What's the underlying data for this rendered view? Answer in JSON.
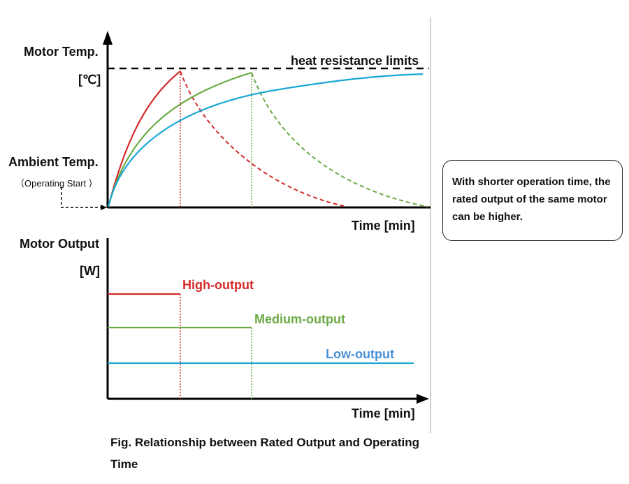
{
  "top_chart": {
    "y_title": "Motor Temp.",
    "y_unit": "[℃]",
    "limit_label": "heat resistance limits",
    "ambient_label": "Ambient Temp.",
    "ambient_sub": "（Operating Start ）",
    "x_label": "Time [min]"
  },
  "bottom_chart": {
    "y_title": "Motor Output",
    "y_unit": "[W]",
    "x_label": "Time [min]"
  },
  "note": "With shorter operation time, the rated output of the same motor can be higher.",
  "caption": "Fig. Relationship between Rated Output  and Operating Time",
  "chart_data": [
    {
      "type": "line",
      "ylabel": "Motor Temp. [℃]",
      "xlabel": "Time [min]",
      "annotations": [
        "heat resistance limits",
        "Ambient Temp.",
        "（Operating Start ）"
      ],
      "series": [
        {
          "color": "#d42a2a",
          "segments": [
            {
              "style": "solid",
              "x": [
                0,
                1
              ],
              "y": [
                0,
                1
              ]
            },
            {
              "style": "dashed",
              "x": [
                1,
                3.25
              ],
              "y": [
                1,
                0.02
              ]
            }
          ]
        },
        {
          "color": "#6aaa45",
          "segments": [
            {
              "style": "solid",
              "x": [
                0,
                2
              ],
              "y": [
                0,
                0.98
              ]
            },
            {
              "style": "dashed",
              "x": [
                2,
                4.5
              ],
              "y": [
                0.98,
                0.0
              ]
            }
          ]
        },
        {
          "color": "#1aa7d6",
          "segments": [
            {
              "style": "solid",
              "x": [
                0,
                4.4
              ],
              "y": [
                0,
                0.98
              ]
            }
          ]
        }
      ],
      "limit": 1.0,
      "grid": false
    },
    {
      "type": "line",
      "ylabel": "Motor Output [W]",
      "xlabel": "Time [min]",
      "series": [
        {
          "name": "High-output",
          "color": "#d42a2a",
          "x": [
            0,
            1
          ],
          "level": 3
        },
        {
          "name": "Medium-output",
          "color": "#6aaa45",
          "x": [
            0,
            2
          ],
          "level": 2
        },
        {
          "name": "Low-output",
          "color": "#1aa7d6",
          "x": [
            0,
            4.3
          ],
          "level": 1
        }
      ],
      "grid": false
    }
  ]
}
